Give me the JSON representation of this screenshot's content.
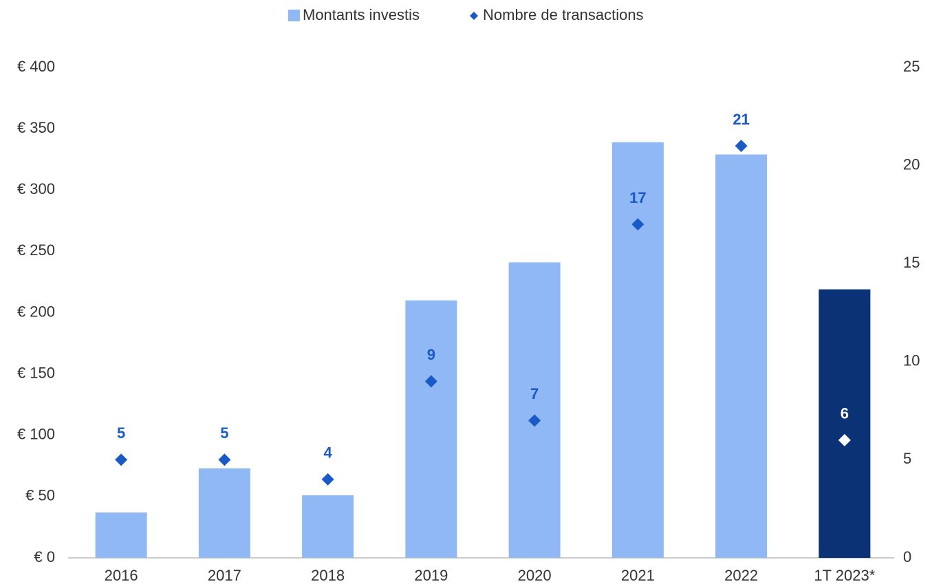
{
  "chart_data": {
    "type": "bar+scatter",
    "categories": [
      "2016",
      "2017",
      "2018",
      "2019",
      "2020",
      "2021",
      "2022",
      "1T 2023*"
    ],
    "series": [
      {
        "name": "Montants investis",
        "type": "bar",
        "color": "#8fb8f5",
        "colors": [
          "#8fb8f5",
          "#8fb8f5",
          "#8fb8f5",
          "#8fb8f5",
          "#8fb8f5",
          "#8fb8f5",
          "#8fb8f5",
          "#0a3275"
        ],
        "values": [
          37,
          73,
          51,
          210,
          241,
          339,
          329,
          219
        ]
      },
      {
        "name": "Nombre de transactions",
        "type": "scatter",
        "axis": "y2",
        "color": "#1a5ac8",
        "colors": [
          "#1a5ac8",
          "#1a5ac8",
          "#1a5ac8",
          "#1a5ac8",
          "#1a5ac8",
          "#1a5ac8",
          "#1a5ac8",
          "#ffffff"
        ],
        "values": [
          5,
          5,
          4,
          9,
          7,
          17,
          21,
          6
        ]
      }
    ],
    "ylim": [
      0,
      400
    ],
    "yticks": [
      {
        "value": 0,
        "label": "€ 0"
      },
      {
        "value": 50,
        "label": "€ 50"
      },
      {
        "value": 100,
        "label": "€ 100"
      },
      {
        "value": 150,
        "label": "€ 150"
      },
      {
        "value": 200,
        "label": "€ 200"
      },
      {
        "value": 250,
        "label": "€ 250"
      },
      {
        "value": 300,
        "label": "€ 300"
      },
      {
        "value": 350,
        "label": "€ 350"
      },
      {
        "value": 400,
        "label": "€ 400"
      }
    ],
    "y2lim": [
      0,
      25
    ],
    "y2ticks": [
      0,
      5,
      10,
      15,
      20,
      25
    ],
    "legend": "top"
  }
}
